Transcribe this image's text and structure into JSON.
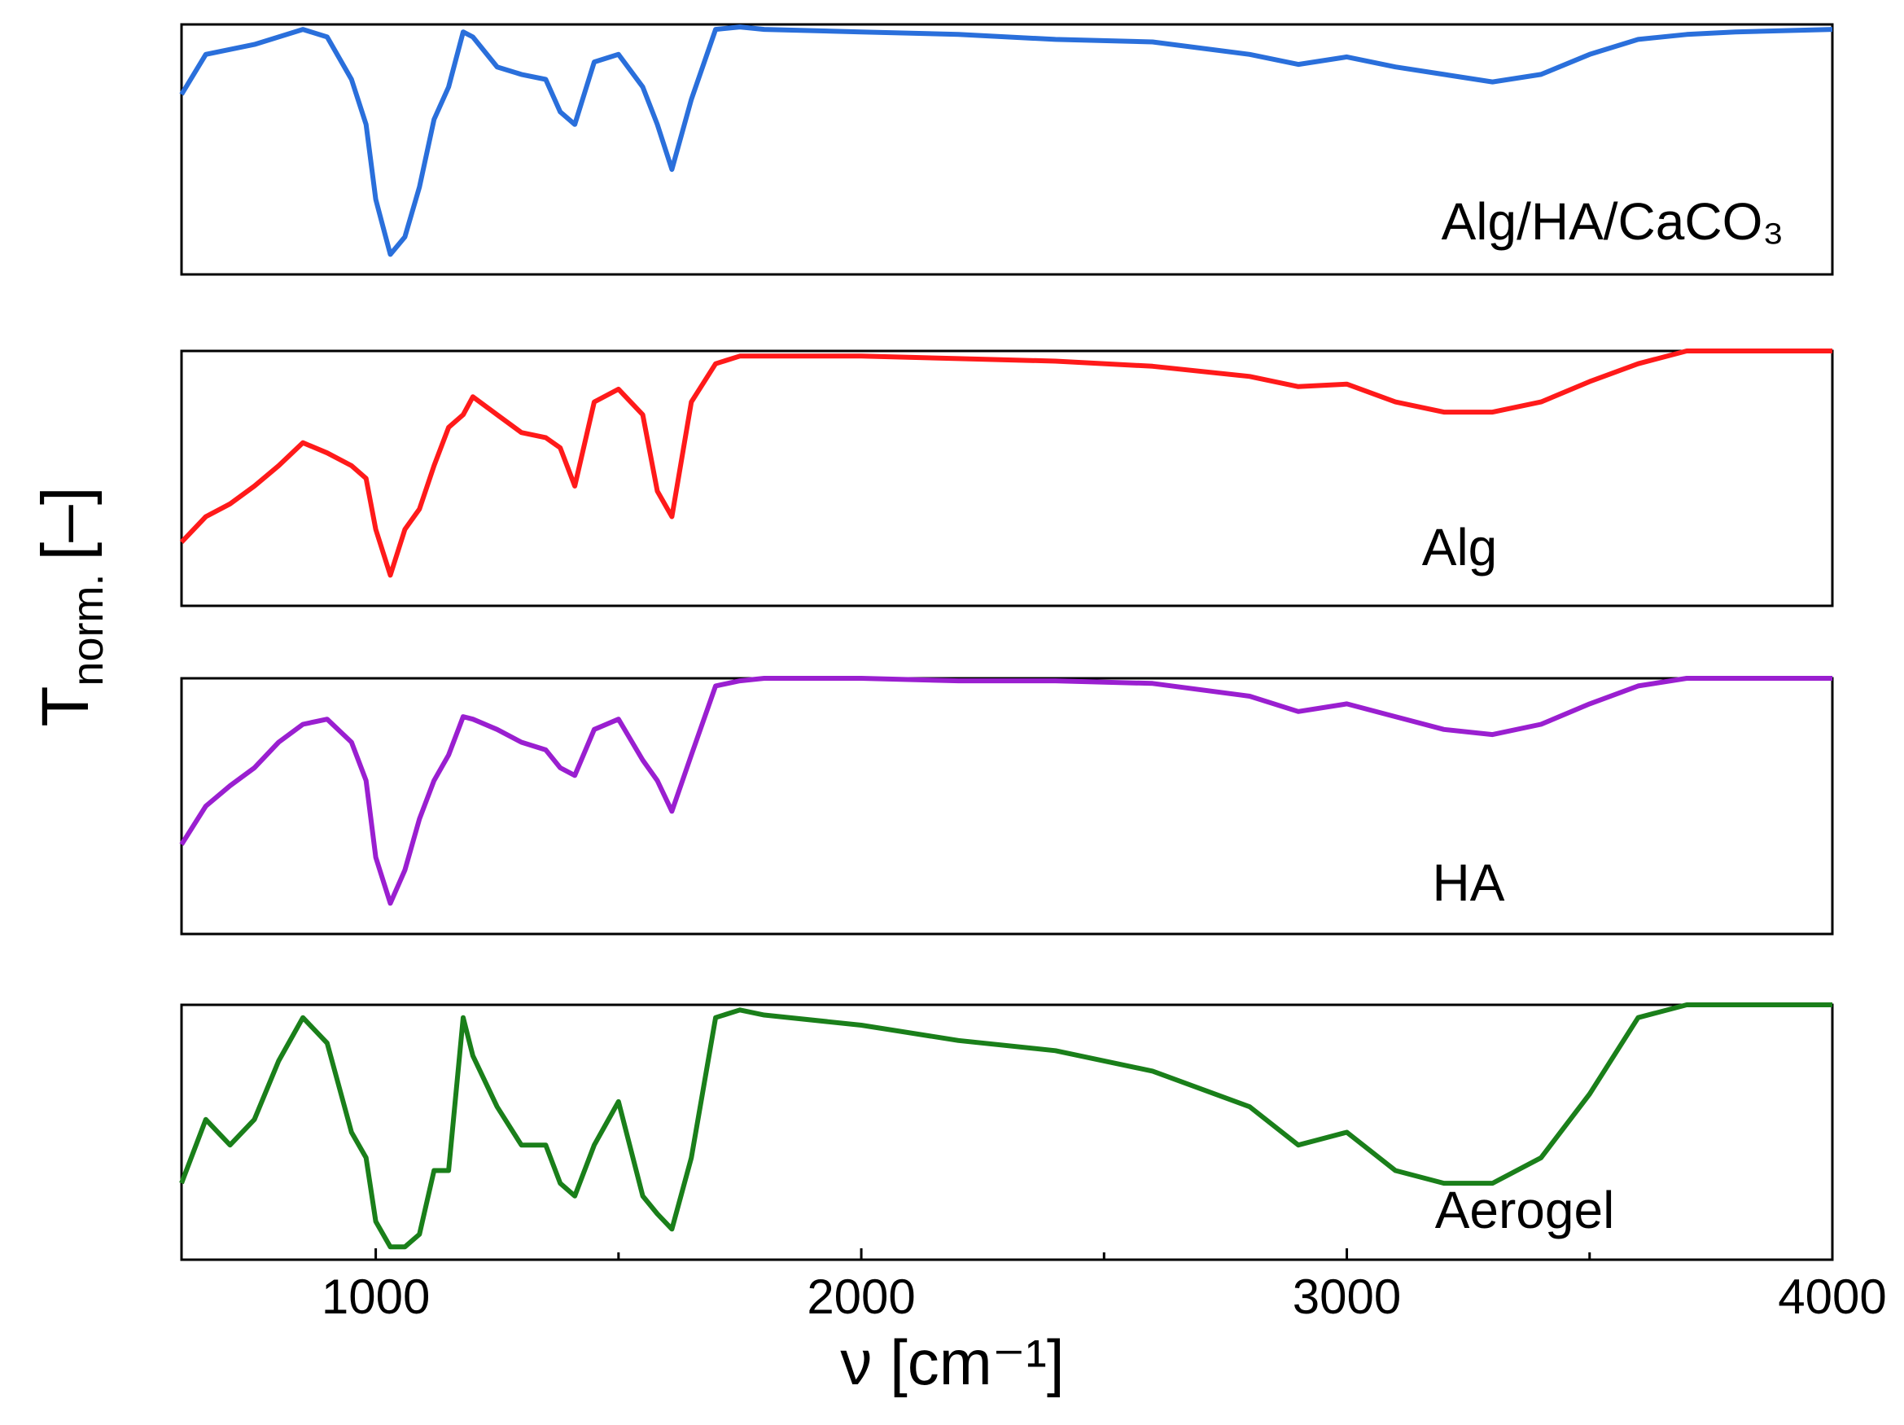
{
  "chart_data": {
    "type": "line",
    "x_label": "ν [cm⁻¹]",
    "y_label": "T",
    "y_label_subscript": "norm.",
    "y_label_unit": "[–]",
    "xlim": [
      600,
      4000
    ],
    "xticks": [
      1000,
      2000,
      3000,
      4000
    ],
    "xminor_ticks": [
      1500,
      2500,
      3500
    ],
    "ylim": [
      0,
      1
    ],
    "x": [
      600,
      650,
      700,
      750,
      800,
      850,
      900,
      950,
      980,
      1000,
      1030,
      1060,
      1090,
      1120,
      1150,
      1180,
      1200,
      1250,
      1300,
      1350,
      1380,
      1410,
      1450,
      1500,
      1550,
      1580,
      1610,
      1650,
      1700,
      1750,
      1800,
      2000,
      2200,
      2400,
      2600,
      2800,
      2900,
      3000,
      3100,
      3200,
      3300,
      3400,
      3500,
      3600,
      3700,
      3800,
      4000
    ],
    "series": [
      {
        "name": "Alg/HA/CaCO₃",
        "color": "#2a6fdb",
        "values": [
          0.72,
          0.88,
          0.9,
          0.92,
          0.95,
          0.98,
          0.95,
          0.78,
          0.6,
          0.3,
          0.08,
          0.15,
          0.35,
          0.62,
          0.75,
          0.97,
          0.95,
          0.83,
          0.8,
          0.78,
          0.65,
          0.6,
          0.85,
          0.88,
          0.75,
          0.6,
          0.42,
          0.7,
          0.98,
          0.99,
          0.98,
          0.97,
          0.96,
          0.94,
          0.93,
          0.88,
          0.84,
          0.87,
          0.83,
          0.8,
          0.77,
          0.8,
          0.88,
          0.94,
          0.96,
          0.97,
          0.98
        ]
      },
      {
        "name": "Alg",
        "color": "#ff1a1a",
        "values": [
          0.25,
          0.35,
          0.4,
          0.47,
          0.55,
          0.64,
          0.6,
          0.55,
          0.5,
          0.3,
          0.12,
          0.3,
          0.38,
          0.55,
          0.7,
          0.75,
          0.82,
          0.75,
          0.68,
          0.66,
          0.62,
          0.47,
          0.8,
          0.85,
          0.75,
          0.45,
          0.35,
          0.8,
          0.95,
          0.98,
          0.98,
          0.98,
          0.97,
          0.96,
          0.94,
          0.9,
          0.86,
          0.87,
          0.8,
          0.76,
          0.76,
          0.8,
          0.88,
          0.95,
          1.0,
          1.0,
          1.0
        ]
      },
      {
        "name": "HA",
        "color": "#9a1fd0",
        "values": [
          0.35,
          0.5,
          0.58,
          0.65,
          0.75,
          0.82,
          0.84,
          0.75,
          0.6,
          0.3,
          0.12,
          0.25,
          0.45,
          0.6,
          0.7,
          0.85,
          0.84,
          0.8,
          0.75,
          0.72,
          0.65,
          0.62,
          0.8,
          0.84,
          0.68,
          0.6,
          0.48,
          0.7,
          0.97,
          0.99,
          1.0,
          1.0,
          0.99,
          0.99,
          0.98,
          0.93,
          0.87,
          0.9,
          0.85,
          0.8,
          0.78,
          0.82,
          0.9,
          0.97,
          1.0,
          1.0,
          1.0
        ]
      },
      {
        "name": "Aerogel",
        "color": "#1a7f1a",
        "values": [
          0.3,
          0.55,
          0.45,
          0.55,
          0.78,
          0.95,
          0.85,
          0.5,
          0.4,
          0.15,
          0.05,
          0.05,
          0.1,
          0.35,
          0.35,
          0.95,
          0.8,
          0.6,
          0.45,
          0.45,
          0.3,
          0.25,
          0.45,
          0.62,
          0.25,
          0.18,
          0.12,
          0.4,
          0.95,
          0.98,
          0.96,
          0.92,
          0.86,
          0.82,
          0.74,
          0.6,
          0.45,
          0.5,
          0.35,
          0.3,
          0.3,
          0.4,
          0.65,
          0.95,
          1.0,
          1.0,
          1.0
        ]
      }
    ]
  }
}
